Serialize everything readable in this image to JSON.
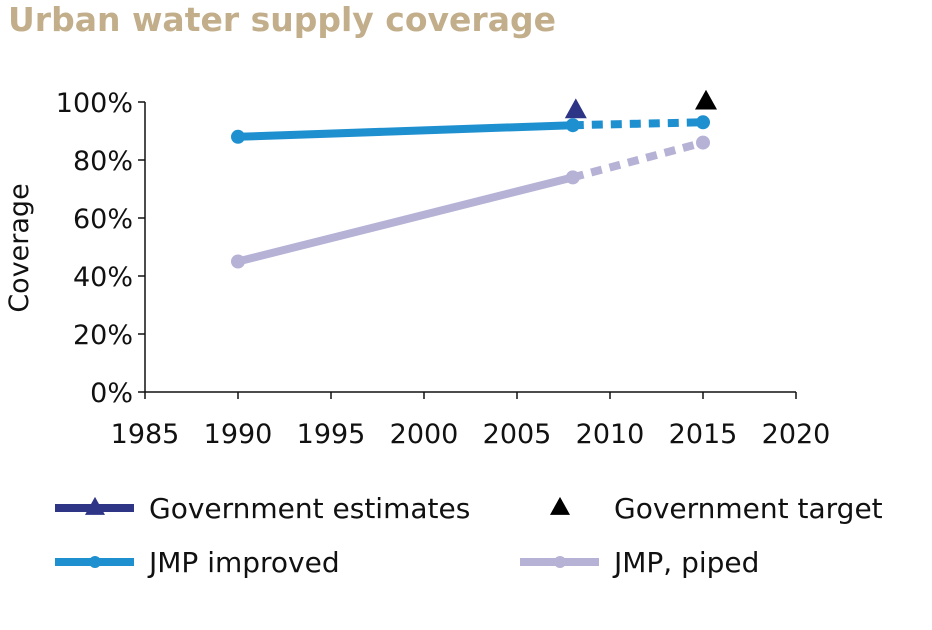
{
  "chart_data": {
    "type": "line",
    "title": "Urban water supply coverage",
    "xlabel": "",
    "ylabel": "Coverage",
    "xlim": [
      1985,
      2020
    ],
    "ylim": [
      0,
      100
    ],
    "x_ticks": [
      "1985",
      "1990",
      "1995",
      "2000",
      "2005",
      "2010",
      "2015",
      "2020"
    ],
    "y_ticks": [
      "0%",
      "20%",
      "40%",
      "60%",
      "80%",
      "100%"
    ],
    "legend_position": "bottom",
    "series": [
      {
        "name": "Government estimates",
        "marker": "triangle",
        "color": "#2e3586",
        "points": [
          {
            "x": 2008,
            "y": 97
          }
        ]
      },
      {
        "name": "Government target",
        "marker": "triangle",
        "color": "#000000",
        "points": [
          {
            "x": 2015,
            "y": 100
          }
        ]
      },
      {
        "name": "JMP improved",
        "marker": "circle",
        "color": "#1e90d0",
        "points": [
          {
            "x": 1990,
            "y": 88
          },
          {
            "x": 2008,
            "y": 92
          },
          {
            "x": 2015,
            "y": 93
          }
        ],
        "projected_from": 2008
      },
      {
        "name": "JMP, piped",
        "marker": "circle",
        "color": "#b5b2d6",
        "points": [
          {
            "x": 1990,
            "y": 45
          },
          {
            "x": 2008,
            "y": 74
          },
          {
            "x": 2015,
            "y": 86
          }
        ],
        "projected_from": 2008
      }
    ]
  }
}
